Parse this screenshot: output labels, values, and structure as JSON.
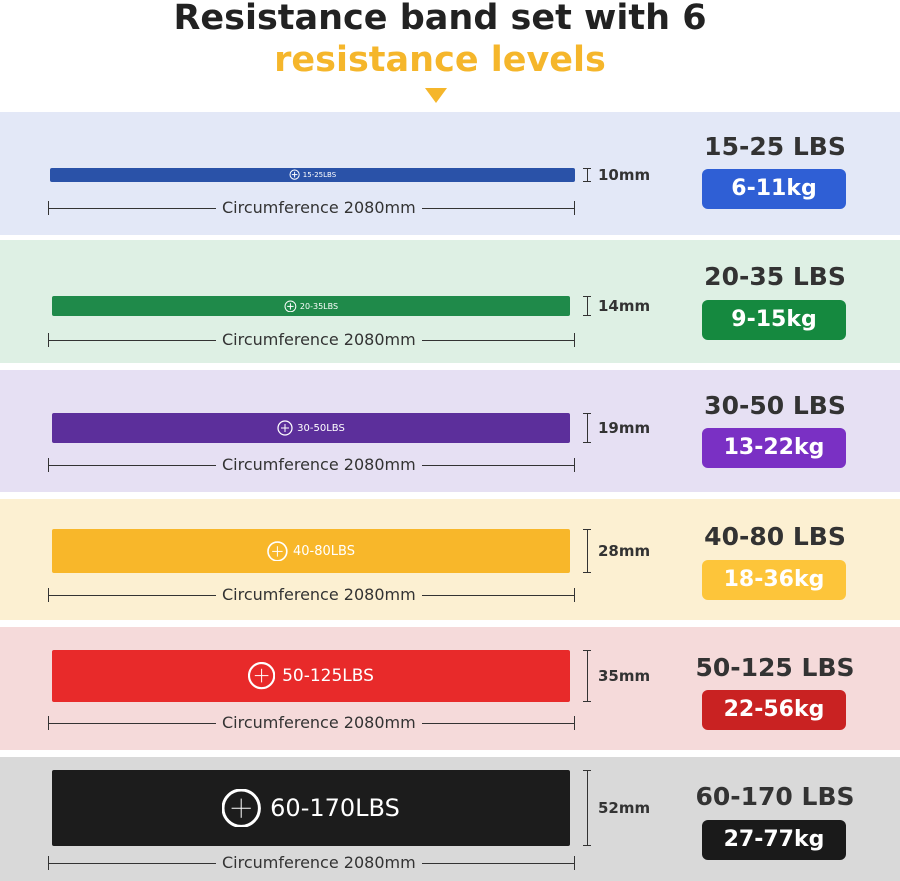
{
  "header": {
    "title": "Resistance band set with 6",
    "subtitle": "resistance levels"
  },
  "bands": [
    {
      "band_label": "15-25LBS",
      "width": "10mm",
      "circumference": "Circumference 2080mm",
      "lbs": "15-25 LBS",
      "kg": "6-11kg",
      "band_color": "#2a52a8",
      "box_color": "#2f5fd5",
      "row_color": "#e3e8f7"
    },
    {
      "band_label": "20-35LBS",
      "width": "14mm",
      "circumference": "Circumference 2080mm",
      "lbs": "20-35 LBS",
      "kg": "9-15kg",
      "band_color": "#1f8a4a",
      "box_color": "#15893f",
      "row_color": "#def0e4"
    },
    {
      "band_label": "30-50LBS",
      "width": "19mm",
      "circumference": "Circumference 2080mm",
      "lbs": "30-50 LBS",
      "kg": "13-22kg",
      "band_color": "#5c2f9b",
      "box_color": "#7a30c4",
      "row_color": "#e6e0f3"
    },
    {
      "band_label": "40-80LBS",
      "width": "28mm",
      "circumference": "Circumference 2080mm",
      "lbs": "40-80 LBS",
      "kg": "18-36kg",
      "band_color": "#f8b72a",
      "box_color": "#fdc53a",
      "row_color": "#fcf0d2"
    },
    {
      "band_label": "50-125LBS",
      "width": "35mm",
      "circumference": "Circumference 2080mm",
      "lbs": "50-125 LBS",
      "kg": "22-56kg",
      "band_color": "#e82a2a",
      "box_color": "#c92222",
      "row_color": "#f5dada"
    },
    {
      "band_label": "60-170LBS",
      "width": "52mm",
      "circumference": "Circumference 2080mm",
      "lbs": "60-170 LBS",
      "kg": "27-77kg",
      "band_color": "#1c1c1c",
      "box_color": "#1a1a1a",
      "row_color": "#d9d9d9"
    }
  ]
}
